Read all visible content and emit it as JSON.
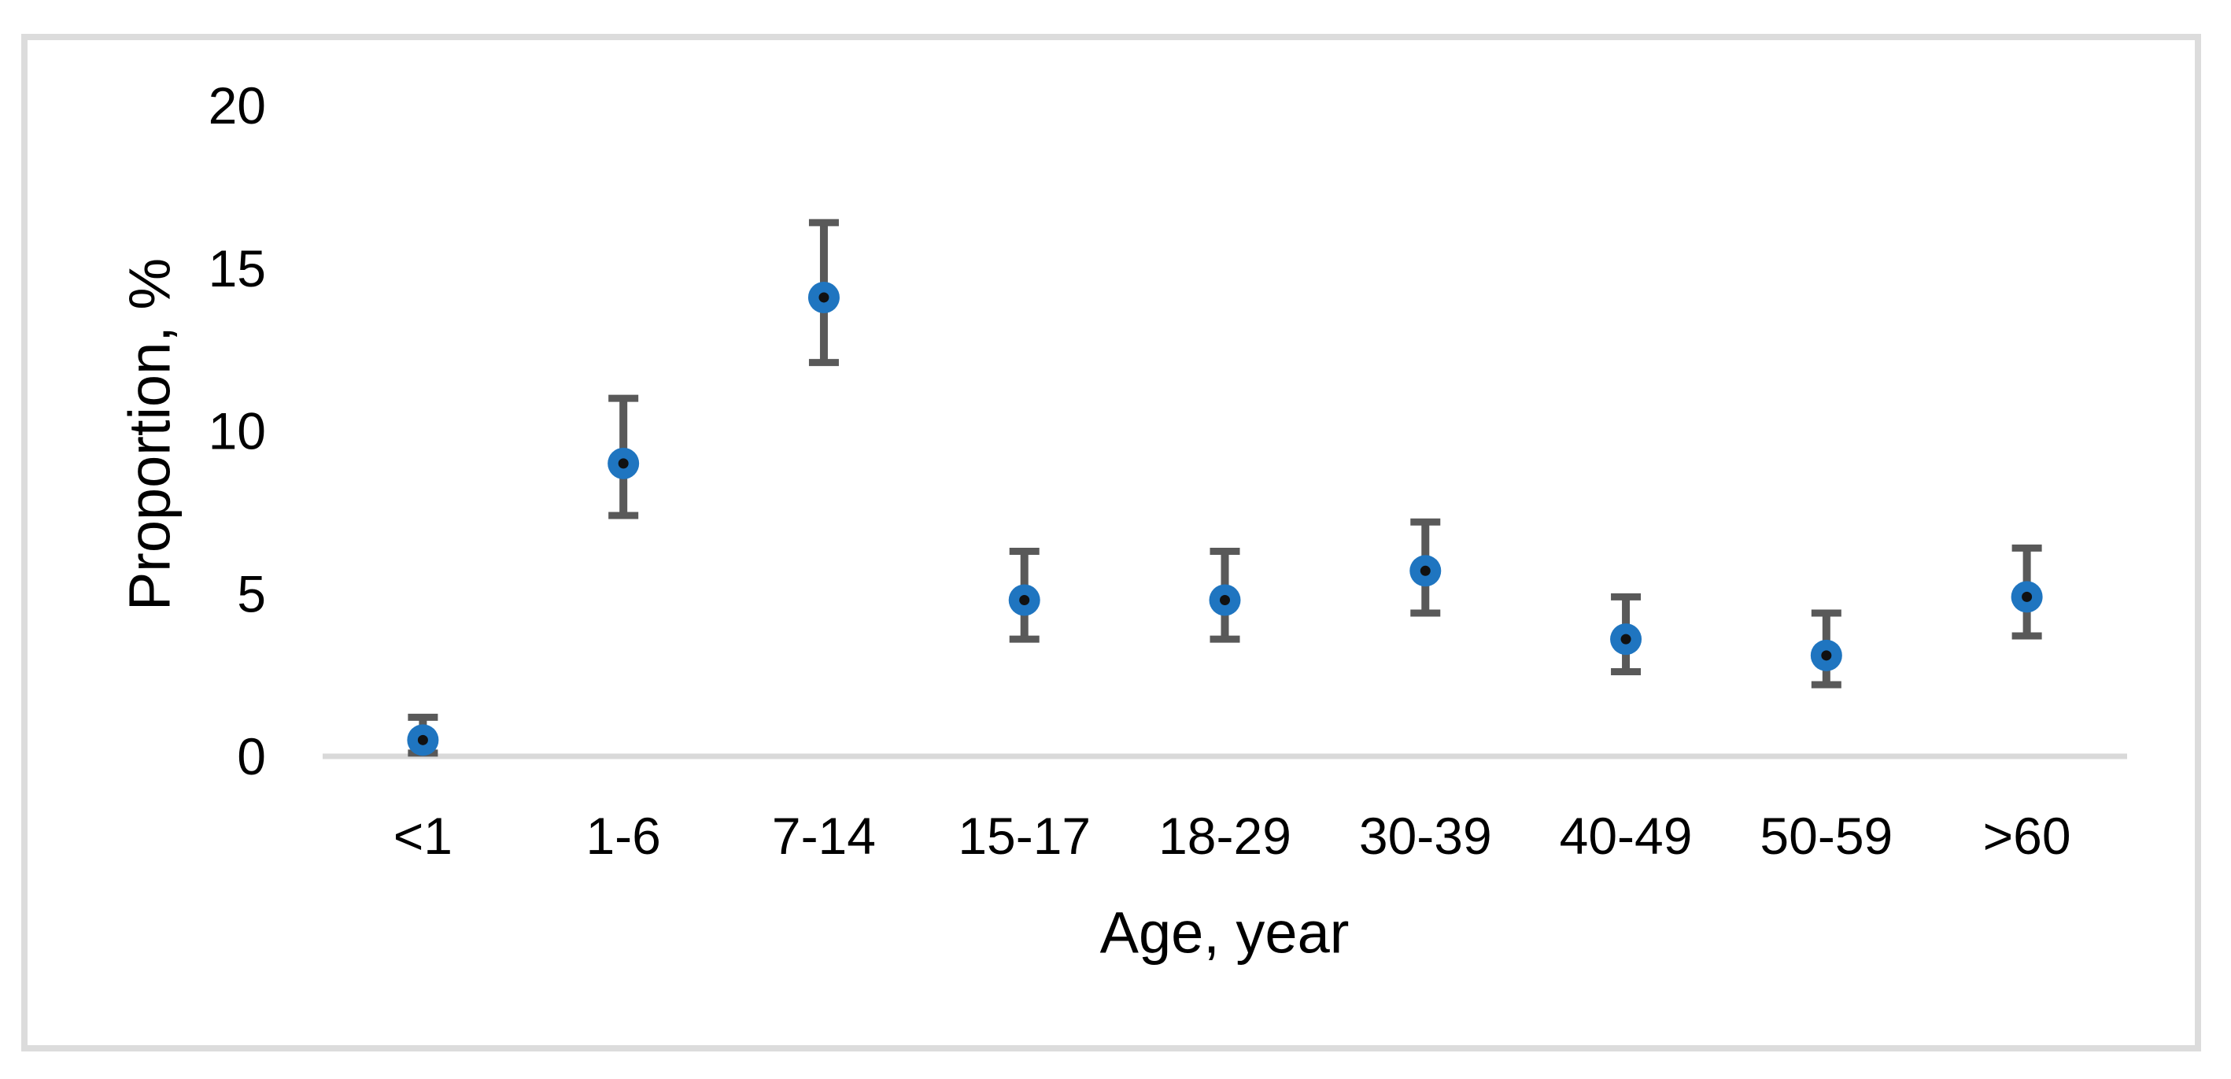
{
  "figure": {
    "background": "#ffffff",
    "frame_color": "#dcdcdc"
  },
  "y_axis": {
    "title": "Proportion, %",
    "tick_labels": [
      "0",
      "5",
      "10",
      "15",
      "20"
    ]
  },
  "x_axis": {
    "title": "Age, year"
  },
  "chart_data": {
    "type": "scatter",
    "title": "",
    "xlabel": "Age, year",
    "ylabel": "Proportion, %",
    "categories": [
      "<1",
      "1-6",
      "7-14",
      "15-17",
      "18-29",
      "30-39",
      "40-49",
      "50-59",
      ">60"
    ],
    "series": [
      {
        "name": "Proportion",
        "values": [
          0.5,
          9.0,
          14.1,
          4.8,
          4.8,
          5.7,
          3.6,
          3.1,
          4.9
        ],
        "ci_low": [
          0.1,
          7.4,
          12.1,
          3.6,
          3.6,
          4.4,
          2.6,
          2.2,
          3.7
        ],
        "ci_high": [
          1.2,
          11.0,
          16.4,
          6.3,
          6.3,
          7.2,
          4.9,
          4.4,
          6.4
        ]
      }
    ],
    "ylim": [
      0,
      20
    ],
    "y_ticks": [
      0,
      5,
      10,
      15,
      20
    ],
    "grid": false,
    "legend": "none",
    "error_bars": true,
    "colors": {
      "marker_fill": "#1f75c0",
      "marker_dot": "#111111",
      "error_bar": "#595959",
      "baseline": "#d9d9d9",
      "frame": "#dcdcdc",
      "text": "#000000"
    }
  }
}
